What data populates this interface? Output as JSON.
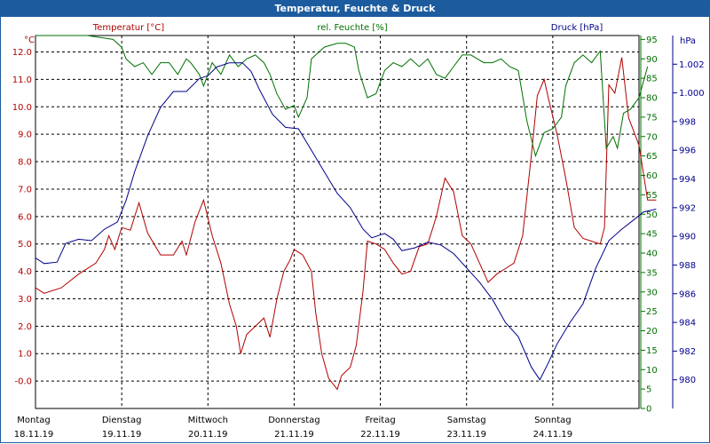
{
  "window": {
    "title": "Temperatur, Feuchte & Druck"
  },
  "chart_data": {
    "type": "line",
    "title": "Temperatur, Feuchte & Druck",
    "x_categories": [
      {
        "day": "Montag",
        "date": "18.11.19"
      },
      {
        "day": "Dienstag",
        "date": "19.11.19"
      },
      {
        "day": "Mittwoch",
        "date": "20.11.19"
      },
      {
        "day": "Donnerstag",
        "date": "21.11.19"
      },
      {
        "day": "Freitag",
        "date": "22.11.19"
      },
      {
        "day": "Samstag",
        "date": "23.11.19"
      },
      {
        "day": "Sonntag",
        "date": "24.11.19"
      }
    ],
    "axes": {
      "temperature": {
        "label": "Temperatur [°C]",
        "unit": "°C",
        "min": -1,
        "max": 12.6,
        "ticks": [
          "-0.0",
          "1.0",
          "2.0",
          "3.0",
          "4.0",
          "5.0",
          "6.0",
          "7.0",
          "8.0",
          "9.0",
          "10.0",
          "11.0",
          "12.0"
        ]
      },
      "humidity": {
        "label": "rel. Feuchte [%]",
        "unit": "%",
        "min": 0,
        "max": 96,
        "ticks": [
          "0",
          "5",
          "10",
          "15",
          "20",
          "25",
          "30",
          "35",
          "40",
          "45",
          "50",
          "55",
          "60",
          "65",
          "70",
          "75",
          "80",
          "85",
          "90",
          "95"
        ]
      },
      "pressure": {
        "label": "Druck [hPa]",
        "unit": "hPa",
        "min": 978,
        "max": 1004,
        "ticks": [
          "980",
          "982",
          "984",
          "986",
          "988",
          "990",
          "992",
          "994",
          "996",
          "998",
          "1.000",
          "1.002"
        ]
      }
    },
    "x_range": [
      0,
      7
    ],
    "grid": true,
    "series": [
      {
        "name": "Temperatur [°C]",
        "axis": "temperature",
        "color": "#b00000",
        "points": [
          [
            0,
            3.4
          ],
          [
            0.1,
            3.2
          ],
          [
            0.3,
            3.4
          ],
          [
            0.5,
            3.9
          ],
          [
            0.7,
            4.3
          ],
          [
            0.8,
            4.8
          ],
          [
            0.85,
            5.3
          ],
          [
            0.92,
            4.8
          ],
          [
            1.0,
            5.6
          ],
          [
            1.1,
            5.5
          ],
          [
            1.2,
            6.5
          ],
          [
            1.3,
            5.4
          ],
          [
            1.45,
            4.6
          ],
          [
            1.6,
            4.6
          ],
          [
            1.7,
            5.1
          ],
          [
            1.75,
            4.6
          ],
          [
            1.85,
            5.8
          ],
          [
            1.95,
            6.6
          ],
          [
            2.05,
            5.3
          ],
          [
            2.15,
            4.3
          ],
          [
            2.25,
            2.8
          ],
          [
            2.33,
            2.0
          ],
          [
            2.38,
            1.0
          ],
          [
            2.45,
            1.7
          ],
          [
            2.55,
            2.0
          ],
          [
            2.65,
            2.3
          ],
          [
            2.72,
            1.6
          ],
          [
            2.8,
            3.0
          ],
          [
            2.88,
            4.0
          ],
          [
            2.95,
            4.4
          ],
          [
            3.0,
            4.8
          ],
          [
            3.1,
            4.6
          ],
          [
            3.2,
            4.0
          ],
          [
            3.25,
            2.5
          ],
          [
            3.32,
            1.0
          ],
          [
            3.4,
            0.1
          ],
          [
            3.5,
            -0.3
          ],
          [
            3.55,
            0.2
          ],
          [
            3.65,
            0.5
          ],
          [
            3.72,
            1.3
          ],
          [
            3.8,
            3.3
          ],
          [
            3.85,
            5.1
          ],
          [
            3.95,
            5.0
          ],
          [
            4.05,
            4.8
          ],
          [
            4.15,
            4.3
          ],
          [
            4.25,
            3.9
          ],
          [
            4.35,
            4.0
          ],
          [
            4.45,
            4.9
          ],
          [
            4.55,
            5.0
          ],
          [
            4.65,
            6.0
          ],
          [
            4.75,
            7.4
          ],
          [
            4.85,
            6.9
          ],
          [
            4.95,
            5.3
          ],
          [
            5.05,
            5.0
          ],
          [
            5.15,
            4.3
          ],
          [
            5.25,
            3.6
          ],
          [
            5.35,
            3.9
          ],
          [
            5.45,
            4.1
          ],
          [
            5.55,
            4.3
          ],
          [
            5.65,
            5.3
          ],
          [
            5.75,
            8.2
          ],
          [
            5.82,
            10.4
          ],
          [
            5.9,
            11.0
          ],
          [
            5.95,
            10.3
          ],
          [
            6.05,
            9.0
          ],
          [
            6.15,
            7.4
          ],
          [
            6.25,
            5.6
          ],
          [
            6.35,
            5.2
          ],
          [
            6.45,
            5.1
          ],
          [
            6.55,
            5.0
          ],
          [
            6.6,
            5.6
          ],
          [
            6.65,
            10.8
          ],
          [
            6.72,
            10.5
          ],
          [
            6.8,
            11.8
          ],
          [
            6.88,
            9.6
          ],
          [
            7.0,
            8.6
          ],
          [
            7.1,
            6.6
          ],
          [
            7.2,
            6.6
          ]
        ]
      },
      {
        "name": "rel. Feuchte [%]",
        "axis": "humidity",
        "color": "#007000",
        "points": [
          [
            0,
            96
          ],
          [
            0.3,
            96
          ],
          [
            0.6,
            96
          ],
          [
            0.9,
            95
          ],
          [
            1.0,
            93
          ],
          [
            1.05,
            90
          ],
          [
            1.15,
            88
          ],
          [
            1.25,
            89
          ],
          [
            1.35,
            86
          ],
          [
            1.45,
            89
          ],
          [
            1.55,
            89
          ],
          [
            1.65,
            86
          ],
          [
            1.75,
            90
          ],
          [
            1.8,
            89
          ],
          [
            1.9,
            86
          ],
          [
            1.95,
            83
          ],
          [
            2.05,
            89
          ],
          [
            2.15,
            86
          ],
          [
            2.25,
            91
          ],
          [
            2.35,
            88
          ],
          [
            2.45,
            90
          ],
          [
            2.55,
            91
          ],
          [
            2.65,
            89
          ],
          [
            2.72,
            86
          ],
          [
            2.8,
            81
          ],
          [
            2.9,
            77
          ],
          [
            3.0,
            78
          ],
          [
            3.05,
            75
          ],
          [
            3.15,
            80
          ],
          [
            3.2,
            90
          ],
          [
            3.35,
            93
          ],
          [
            3.5,
            94
          ],
          [
            3.6,
            94
          ],
          [
            3.7,
            93
          ],
          [
            3.75,
            87
          ],
          [
            3.85,
            80
          ],
          [
            3.95,
            81
          ],
          [
            4.05,
            87
          ],
          [
            4.15,
            89
          ],
          [
            4.25,
            88
          ],
          [
            4.35,
            90
          ],
          [
            4.45,
            88
          ],
          [
            4.55,
            90
          ],
          [
            4.65,
            86
          ],
          [
            4.75,
            85
          ],
          [
            4.85,
            88
          ],
          [
            4.95,
            91
          ],
          [
            5.05,
            91
          ],
          [
            5.2,
            89
          ],
          [
            5.3,
            89
          ],
          [
            5.4,
            90
          ],
          [
            5.5,
            88
          ],
          [
            5.6,
            87
          ],
          [
            5.7,
            74
          ],
          [
            5.8,
            65
          ],
          [
            5.9,
            71
          ],
          [
            6.0,
            72
          ],
          [
            6.1,
            75
          ],
          [
            6.15,
            83
          ],
          [
            6.25,
            89
          ],
          [
            6.35,
            91
          ],
          [
            6.45,
            89
          ],
          [
            6.55,
            92
          ],
          [
            6.62,
            67
          ],
          [
            6.7,
            70
          ],
          [
            6.75,
            67
          ],
          [
            6.82,
            76
          ],
          [
            6.9,
            77
          ],
          [
            7.0,
            80
          ],
          [
            7.1,
            88
          ]
        ]
      },
      {
        "name": "Druck [hPa]",
        "axis": "pressure",
        "color": "#00008b",
        "points": [
          [
            0,
            988.5
          ],
          [
            0.1,
            988.1
          ],
          [
            0.25,
            988.2
          ],
          [
            0.35,
            989.5
          ],
          [
            0.5,
            989.8
          ],
          [
            0.65,
            989.7
          ],
          [
            0.8,
            990.5
          ],
          [
            0.95,
            991.0
          ],
          [
            1.05,
            992.5
          ],
          [
            1.15,
            994.5
          ],
          [
            1.3,
            997.0
          ],
          [
            1.45,
            999.0
          ],
          [
            1.6,
            1000.1
          ],
          [
            1.75,
            1000.1
          ],
          [
            1.9,
            1001.0
          ],
          [
            2.0,
            1001.2
          ],
          [
            2.1,
            1001.8
          ],
          [
            2.25,
            1002.1
          ],
          [
            2.4,
            1002.1
          ],
          [
            2.5,
            1001.5
          ],
          [
            2.6,
            1000.2
          ],
          [
            2.75,
            998.5
          ],
          [
            2.9,
            997.6
          ],
          [
            3.05,
            997.5
          ],
          [
            3.2,
            996.0
          ],
          [
            3.35,
            994.5
          ],
          [
            3.5,
            993.0
          ],
          [
            3.65,
            992.0
          ],
          [
            3.8,
            990.5
          ],
          [
            3.9,
            989.9
          ],
          [
            4.05,
            990.2
          ],
          [
            4.15,
            989.8
          ],
          [
            4.25,
            989.0
          ],
          [
            4.4,
            989.2
          ],
          [
            4.55,
            989.6
          ],
          [
            4.7,
            989.4
          ],
          [
            4.85,
            988.8
          ],
          [
            5.0,
            987.8
          ],
          [
            5.15,
            986.8
          ],
          [
            5.3,
            985.6
          ],
          [
            5.45,
            984.0
          ],
          [
            5.6,
            983.0
          ],
          [
            5.75,
            980.9
          ],
          [
            5.85,
            980.0
          ],
          [
            5.95,
            981.2
          ],
          [
            6.05,
            982.5
          ],
          [
            6.2,
            984.0
          ],
          [
            6.35,
            985.3
          ],
          [
            6.5,
            987.8
          ],
          [
            6.65,
            989.7
          ],
          [
            6.8,
            990.5
          ],
          [
            6.95,
            991.2
          ],
          [
            7.05,
            991.7
          ],
          [
            7.2,
            991.9
          ]
        ]
      }
    ]
  }
}
